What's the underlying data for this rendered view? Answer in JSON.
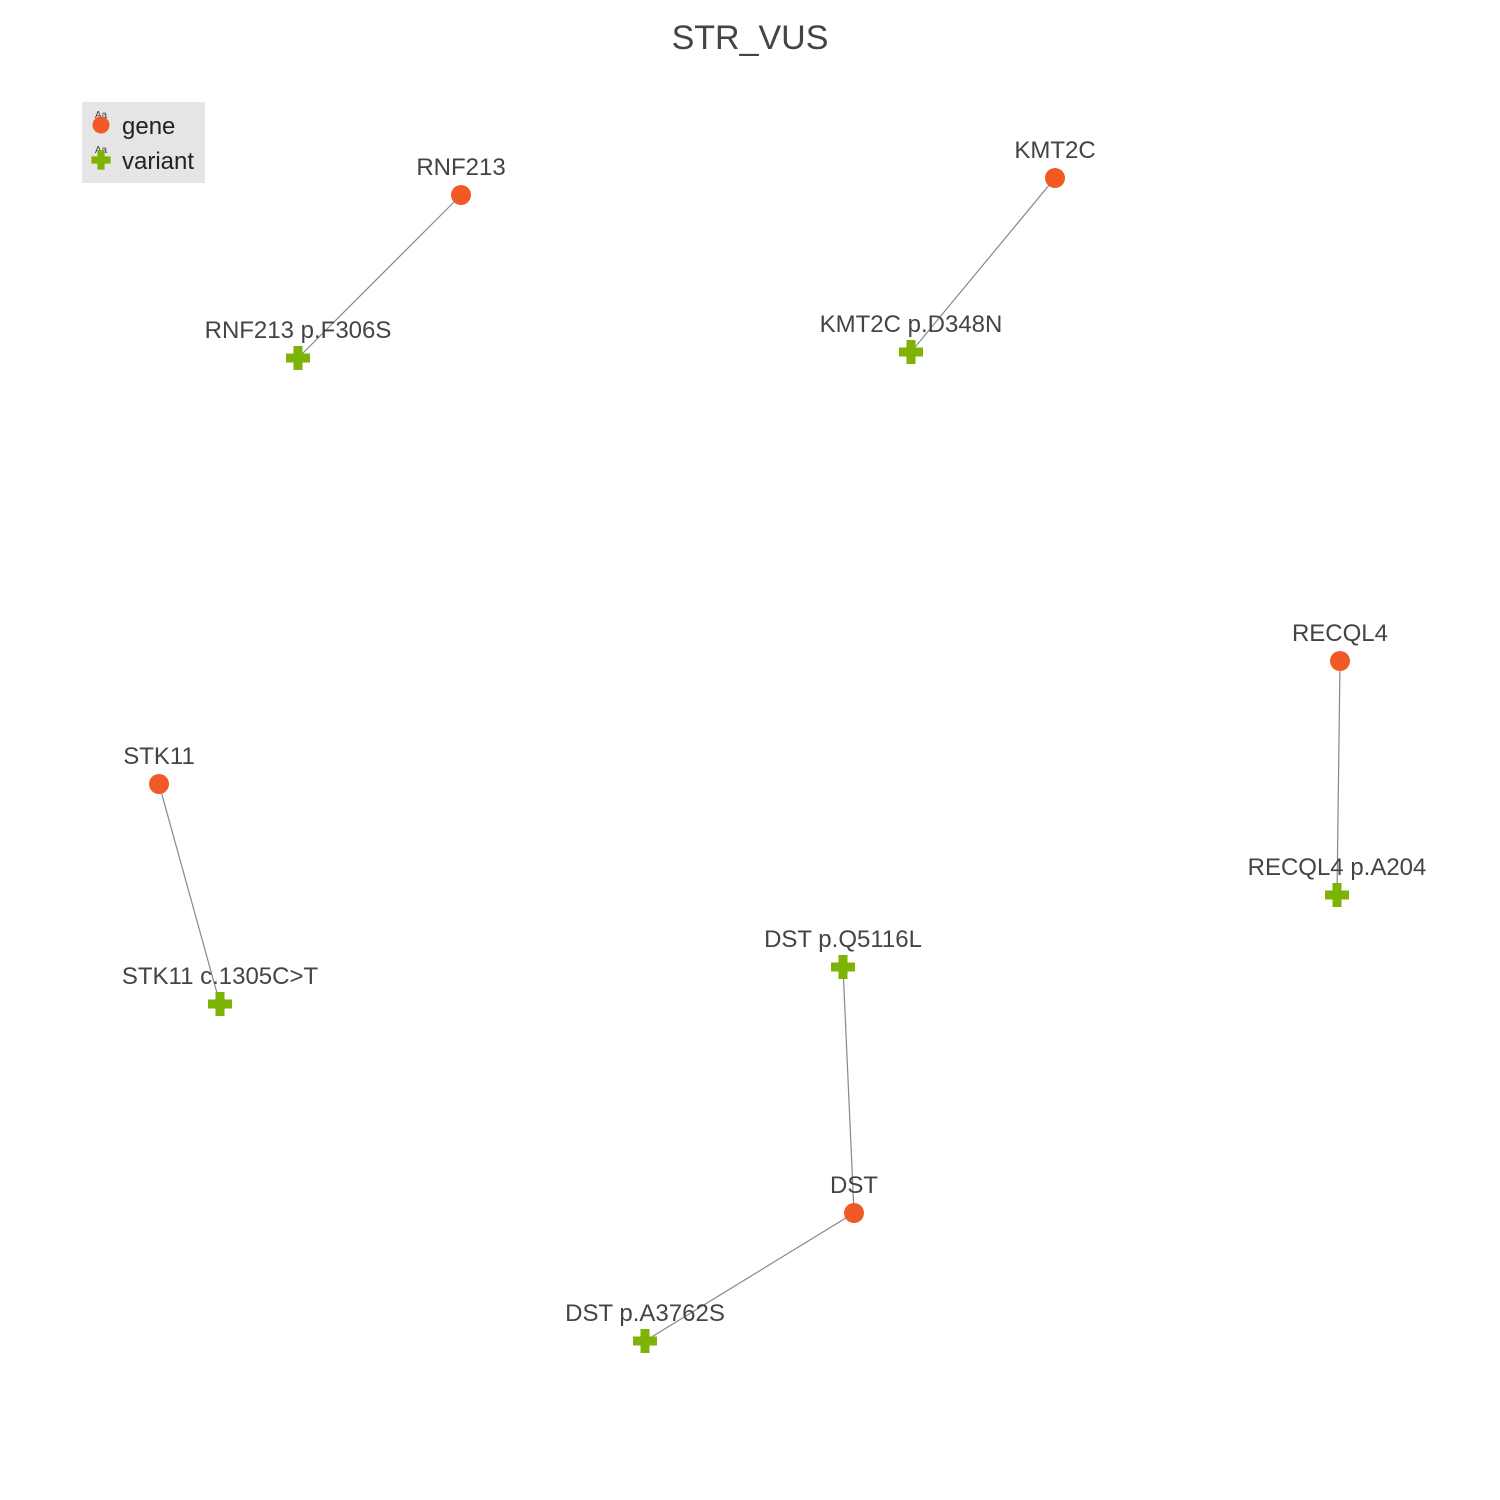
{
  "title": "STR_VUS",
  "colors": {
    "gene": "#f15a24",
    "variant": "#7cb305",
    "edge": "#888888",
    "legend_bg": "#e5e5e5"
  },
  "legend": {
    "items": [
      {
        "label": "gene",
        "type": "gene",
        "icon": "circle-icon",
        "sample": "Aa"
      },
      {
        "label": "variant",
        "type": "variant",
        "icon": "cross-icon",
        "sample": "Aa"
      }
    ]
  },
  "nodes": [
    {
      "id": "RNF213",
      "label": "RNF213",
      "type": "gene"
    },
    {
      "id": "RNF213_v",
      "label": "RNF213 p.F306S",
      "type": "variant"
    },
    {
      "id": "KMT2C",
      "label": "KMT2C",
      "type": "gene"
    },
    {
      "id": "KMT2C_v",
      "label": "KMT2C p.D348N",
      "type": "variant"
    },
    {
      "id": "RECQL4",
      "label": "RECQL4",
      "type": "gene"
    },
    {
      "id": "RECQL4_v",
      "label": "RECQL4 p.A204",
      "type": "variant"
    },
    {
      "id": "STK11",
      "label": "STK11",
      "type": "gene"
    },
    {
      "id": "STK11_v",
      "label": "STK11 c.1305C>T",
      "type": "variant"
    },
    {
      "id": "DST",
      "label": "DST",
      "type": "gene"
    },
    {
      "id": "DST_v1",
      "label": "DST p.Q5116L",
      "type": "variant"
    },
    {
      "id": "DST_v2",
      "label": "DST p.A3762S",
      "type": "variant"
    }
  ],
  "edges": [
    {
      "source": "RNF213",
      "target": "RNF213_v"
    },
    {
      "source": "KMT2C",
      "target": "KMT2C_v"
    },
    {
      "source": "RECQL4",
      "target": "RECQL4_v"
    },
    {
      "source": "STK11",
      "target": "STK11_v"
    },
    {
      "source": "DST",
      "target": "DST_v1"
    },
    {
      "source": "DST",
      "target": "DST_v2"
    }
  ]
}
